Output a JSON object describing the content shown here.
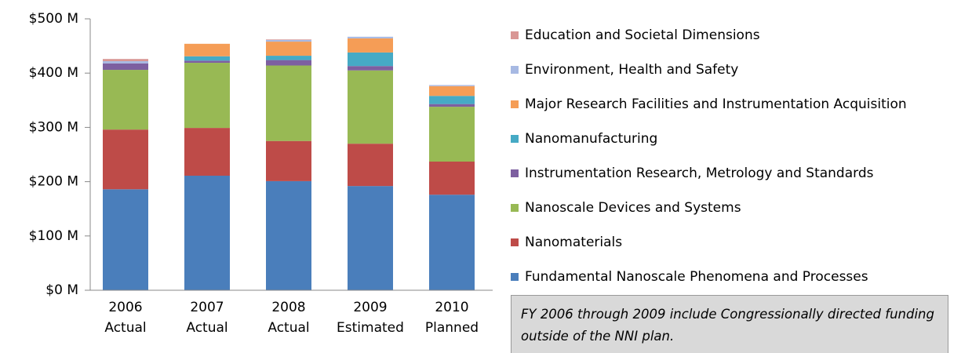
{
  "chart_data": {
    "type": "stacked_bar",
    "categories": [
      [
        "2006",
        "Actual"
      ],
      [
        "2007",
        "Actual"
      ],
      [
        "2008",
        "Actual"
      ],
      [
        "2009",
        "Estimated"
      ],
      [
        "2010",
        "Planned"
      ]
    ],
    "series": [
      {
        "name": "Fundamental Nanoscale Phenomena and Processes",
        "color": "#4a7ebb",
        "values": [
          186,
          211,
          201,
          192,
          176
        ]
      },
      {
        "name": "Nanomaterials",
        "color": "#be4b48",
        "values": [
          110,
          88,
          74,
          78,
          61
        ]
      },
      {
        "name": "Nanoscale Devices and Systems",
        "color": "#98b954",
        "values": [
          110,
          120,
          139,
          135,
          101
        ]
      },
      {
        "name": "Instrumentation Research, Metrology and Standards",
        "color": "#7d5fa0",
        "values": [
          12,
          4,
          10,
          8,
          5
        ]
      },
      {
        "name": "Nanomanufacturing",
        "color": "#46aac5",
        "values": [
          0,
          8,
          8,
          25,
          15
        ]
      },
      {
        "name": "Major Research Facilities and Instrumentation  Acquisition",
        "color": "#f59d56",
        "values": [
          0,
          23,
          26,
          26,
          18
        ]
      },
      {
        "name": "Environment, Health and Safety",
        "color": "#a7b9e3",
        "values": [
          4,
          0,
          3,
          3,
          2
        ]
      },
      {
        "name": "Education and Societal Dimensions",
        "color": "#d99694",
        "values": [
          4,
          0,
          1,
          0,
          0
        ]
      }
    ],
    "ylim": [
      0,
      500
    ],
    "yticks": [
      {
        "value": 0,
        "label": "$0 M"
      },
      {
        "value": 100,
        "label": "$100 M"
      },
      {
        "value": 200,
        "label": "$200 M"
      },
      {
        "value": 300,
        "label": "$300 M"
      },
      {
        "value": 400,
        "label": "$400 M"
      },
      {
        "value": 500,
        "label": "$500 M"
      }
    ],
    "annotation": "FY 2006 through 2009 include Congressionally directed funding outside of the NNI plan."
  }
}
